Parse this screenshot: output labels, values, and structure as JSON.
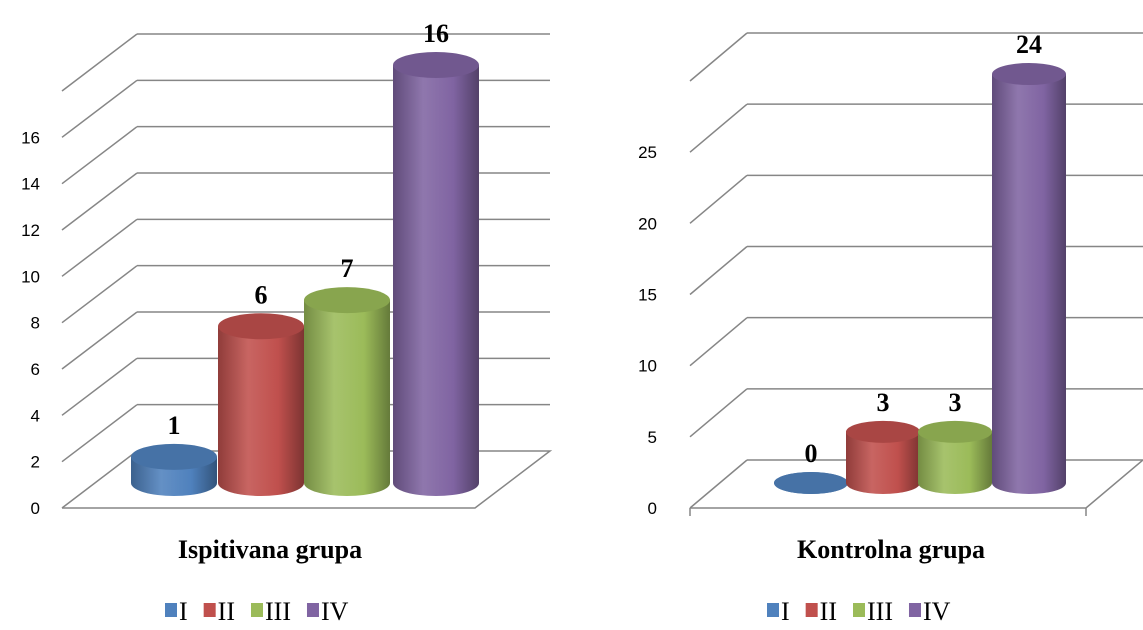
{
  "chart_data": [
    {
      "type": "bar",
      "title": "Ispitivana grupa",
      "xlabel": "",
      "ylabel": "",
      "ylim": [
        0,
        18
      ],
      "yticks": [
        0,
        2,
        4,
        6,
        8,
        10,
        12,
        14,
        16
      ],
      "grid": true,
      "legend_position": "bottom",
      "categories": [
        "I",
        "II",
        "III",
        "IV"
      ],
      "values": [
        1,
        6,
        7,
        16
      ],
      "data_labels": [
        "1",
        "6",
        "7",
        "16"
      ],
      "colors": [
        "#4f81bd",
        "#c0504d",
        "#9bbb59",
        "#8064a2"
      ]
    },
    {
      "type": "bar",
      "title": "Kontrolna grupa",
      "xlabel": "",
      "ylabel": "",
      "ylim": [
        0,
        30
      ],
      "yticks": [
        0,
        5,
        10,
        15,
        20,
        25
      ],
      "grid": true,
      "legend_position": "bottom",
      "categories": [
        "I",
        "II",
        "III",
        "IV"
      ],
      "values": [
        0,
        3,
        3,
        24
      ],
      "data_labels": [
        "0",
        "3",
        "3",
        "24"
      ],
      "colors": [
        "#4f81bd",
        "#c0504d",
        "#9bbb59",
        "#8064a2"
      ]
    }
  ]
}
